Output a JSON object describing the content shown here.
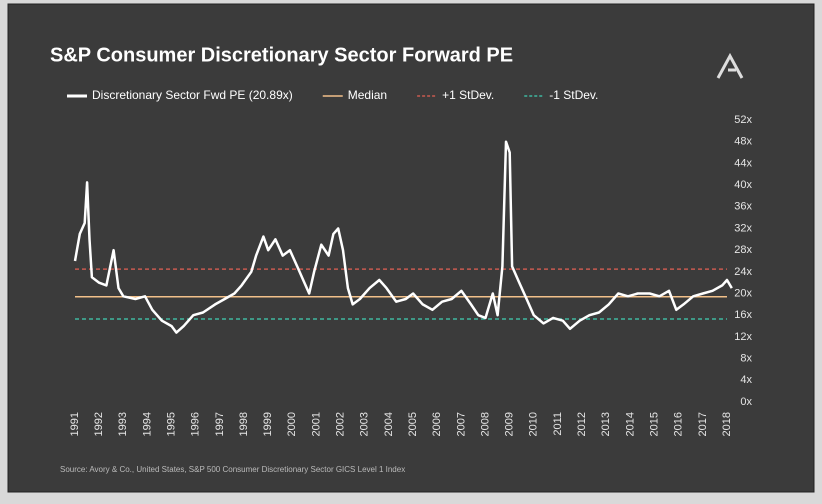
{
  "chart_data": {
    "type": "line",
    "title": "S&P Consumer Discretionary Sector Forward PE",
    "source": "Source: Avory & Co., United States, S&P 500 Consumer Discretionary Sector GICS Level 1 Index",
    "xlim": [
      1991,
      2018
    ],
    "xticks": [
      1991,
      1992,
      1993,
      1994,
      1995,
      1996,
      1997,
      1998,
      1999,
      2000,
      2001,
      2002,
      2003,
      2004,
      2005,
      2006,
      2007,
      2008,
      2009,
      2010,
      2011,
      2012,
      2013,
      2014,
      2015,
      2016,
      2017,
      2018
    ],
    "ylim": [
      0,
      52
    ],
    "yticks": [
      {
        "value": 0,
        "label": "0x"
      },
      {
        "value": 4,
        "label": "4x"
      },
      {
        "value": 8,
        "label": "8x"
      },
      {
        "value": 12,
        "label": "12x"
      },
      {
        "value": 16,
        "label": "16x"
      },
      {
        "value": 20,
        "label": "20x"
      },
      {
        "value": 24,
        "label": "24x"
      },
      {
        "value": 28,
        "label": "28x"
      },
      {
        "value": 32,
        "label": "32x"
      },
      {
        "value": 36,
        "label": "36x"
      },
      {
        "value": 40,
        "label": "40x"
      },
      {
        "value": 44,
        "label": "44x"
      },
      {
        "value": 48,
        "label": "48x"
      },
      {
        "value": 52,
        "label": "52x"
      }
    ],
    "series": [
      {
        "name": "Discretionary Sector Fwd PE  (20.89x)",
        "color": "#ffffff",
        "x": [
          1991.0,
          1991.2,
          1991.4,
          1991.5,
          1991.6,
          1991.7,
          1992.0,
          1992.3,
          1992.6,
          1992.8,
          1993.0,
          1993.5,
          1993.9,
          1994.2,
          1994.6,
          1995.0,
          1995.2,
          1995.5,
          1995.9,
          1996.3,
          1996.8,
          1997.2,
          1997.6,
          1997.9,
          1998.3,
          1998.5,
          1998.8,
          1999.0,
          1999.3,
          1999.6,
          1999.9,
          2000.2,
          2000.5,
          2000.7,
          2000.9,
          2001.2,
          2001.5,
          2001.7,
          2001.9,
          2002.1,
          2002.3,
          2002.5,
          2002.8,
          2003.2,
          2003.6,
          2003.9,
          2004.3,
          2004.7,
          2005.0,
          2005.4,
          2005.8,
          2006.2,
          2006.6,
          2007.0,
          2007.4,
          2007.7,
          2008.0,
          2008.3,
          2008.5,
          2008.7,
          2008.85,
          2009.0,
          2009.1,
          2009.4,
          2009.7,
          2010.0,
          2010.4,
          2010.8,
          2011.2,
          2011.5,
          2011.9,
          2012.3,
          2012.7,
          2013.1,
          2013.5,
          2013.9,
          2014.3,
          2014.8,
          2015.2,
          2015.6,
          2015.9,
          2016.2,
          2016.6,
          2017.0,
          2017.4,
          2017.8,
          2018.0,
          2018.2
        ],
        "values": [
          26,
          31,
          33,
          40.5,
          30,
          23,
          22,
          21.5,
          28,
          21,
          19.5,
          19,
          19.5,
          17,
          15,
          14,
          12.8,
          14,
          16,
          16.5,
          18,
          19,
          20,
          21.5,
          24,
          27,
          30.5,
          28,
          30,
          27,
          28,
          25,
          22,
          20,
          24,
          29,
          27,
          31,
          32,
          28,
          21,
          18,
          19,
          21,
          22.5,
          21,
          18.5,
          19,
          20,
          18,
          17,
          18.5,
          19,
          20.5,
          18,
          16,
          15.5,
          20,
          16,
          25,
          48,
          46,
          25,
          22,
          19,
          16,
          14.5,
          15.5,
          15,
          13.5,
          15,
          16,
          16.5,
          18,
          20,
          19.5,
          20,
          20,
          19.5,
          20.5,
          17,
          18,
          19.5,
          20,
          20.5,
          21.5,
          22.5,
          21
        ]
      }
    ],
    "reference_lines": [
      {
        "name": "Median",
        "value": 19.4,
        "color": "#f2c08a",
        "dashed": false
      },
      {
        "name": "+1 StDev.",
        "value": 24.5,
        "color": "#c85a50",
        "dashed": true
      },
      {
        "name": "-1 StDev.",
        "value": 15.3,
        "color": "#3fb8a0",
        "dashed": true
      }
    ]
  }
}
